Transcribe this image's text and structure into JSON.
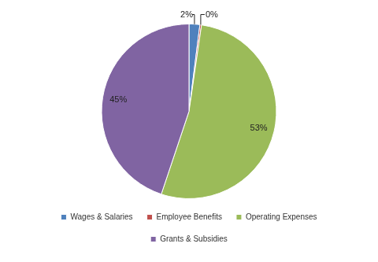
{
  "chart_data": {
    "type": "pie",
    "categories": [
      "Wages & Salaries",
      "Employee Benefits",
      "Operating Expenses",
      "Grants & Subsidies"
    ],
    "values": [
      2,
      0.3,
      53,
      45
    ],
    "value_labels": [
      "2%",
      "0%",
      "53%",
      "45%"
    ],
    "colors": [
      "#4f81bd",
      "#c0504d",
      "#9bbb59",
      "#8064a2"
    ],
    "data_labels": true,
    "legend": "bottom"
  }
}
